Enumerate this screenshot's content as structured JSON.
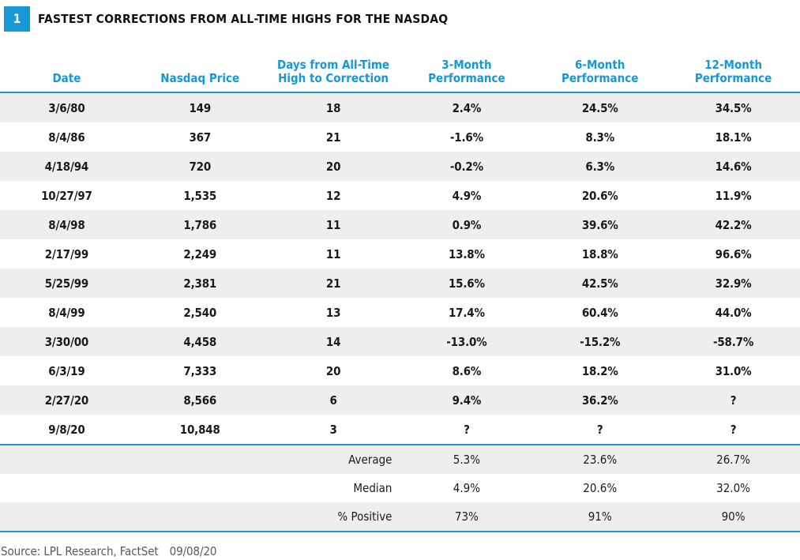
{
  "figure_badge": "1",
  "title": "FASTEST CORRECTIONS FROM ALL-TIME HIGHS FOR THE NASDAQ",
  "source": {
    "text": "Source: LPL Research, FactSet",
    "date": "09/08/20"
  },
  "colors": {
    "accent_blue": "#1697D6",
    "stripe_gray": "#EEEEEE",
    "data_text": "#1B1B1B",
    "source_text": "#58595B",
    "badge_text": "#FFFFFF"
  },
  "chart_data": {
    "type": "table",
    "title": "Fastest Corrections from All-Time Highs for the Nasdaq",
    "columns": [
      "Date",
      "Nasdaq Price",
      "Days from All-Time High to Correction",
      "3-Month Performance",
      "6-Month Performance",
      "12-Month Performance"
    ],
    "rows": [
      [
        "3/6/80",
        "149",
        "18",
        "2.4%",
        "24.5%",
        "34.5%"
      ],
      [
        "8/4/86",
        "367",
        "21",
        "-1.6%",
        "8.3%",
        "18.1%"
      ],
      [
        "4/18/94",
        "720",
        "20",
        "-0.2%",
        "6.3%",
        "14.6%"
      ],
      [
        "10/27/97",
        "1,535",
        "12",
        "4.9%",
        "20.6%",
        "11.9%"
      ],
      [
        "8/4/98",
        "1,786",
        "11",
        "0.9%",
        "39.6%",
        "42.2%"
      ],
      [
        "2/17/99",
        "2,249",
        "11",
        "13.8%",
        "18.8%",
        "96.6%"
      ],
      [
        "5/25/99",
        "2,381",
        "21",
        "15.6%",
        "42.5%",
        "32.9%"
      ],
      [
        "8/4/99",
        "2,540",
        "13",
        "17.4%",
        "60.4%",
        "44.0%"
      ],
      [
        "3/30/00",
        "4,458",
        "14",
        "-13.0%",
        "-15.2%",
        "-58.7%"
      ],
      [
        "6/3/19",
        "7,333",
        "20",
        "8.6%",
        "18.2%",
        "31.0%"
      ],
      [
        "2/27/20",
        "8,566",
        "6",
        "9.4%",
        "36.2%",
        "?"
      ],
      [
        "9/8/20",
        "10,848",
        "3",
        "?",
        "?",
        "?"
      ]
    ],
    "summary_rows": [
      [
        "",
        "",
        "Average",
        "5.3%",
        "23.6%",
        "26.7%"
      ],
      [
        "",
        "",
        "Median",
        "4.9%",
        "20.6%",
        "32.0%"
      ],
      [
        "",
        "",
        "% Positive",
        "73%",
        "91%",
        "90%"
      ]
    ],
    "layout": {
      "row_striping": "alternating, first row shaded",
      "header_text_color": "#1697D6",
      "rules": "blue rule under header, above summary block, and below summary block"
    }
  }
}
